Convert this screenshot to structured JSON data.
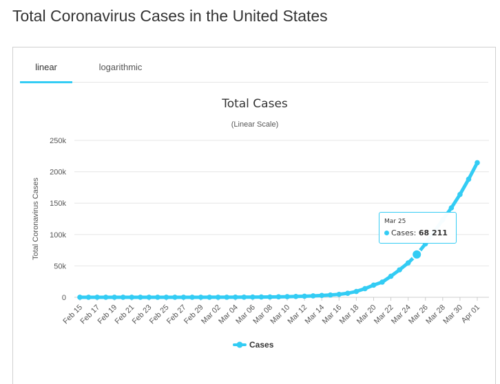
{
  "page": {
    "title": "Total Coronavirus Cases in the United States"
  },
  "tabs": [
    {
      "label": "linear",
      "active": true
    },
    {
      "label": "logarithmic",
      "active": false
    }
  ],
  "tooltip": {
    "date": "Mar 25",
    "series": "Cases",
    "value_text": "68 211"
  },
  "legend": {
    "label": "Cases"
  },
  "colors": {
    "series": "#33ccf4",
    "tab_active": "#33ccf4",
    "grid": "#e6e6e6"
  },
  "chart_data": {
    "type": "line",
    "title": "Total Cases",
    "subtitle": "(Linear Scale)",
    "ylabel": "Total Coronavirus Cases",
    "xlabel": "",
    "ylim": [
      0,
      250000
    ],
    "y_ticks": [
      0,
      50000,
      100000,
      150000,
      200000,
      250000
    ],
    "y_tick_labels": [
      "0",
      "50k",
      "100k",
      "150k",
      "200k",
      "250k"
    ],
    "grid": true,
    "legend_position": "bottom-center",
    "x_tick_labels": [
      "Feb 15",
      "Feb 17",
      "Feb 19",
      "Feb 21",
      "Feb 23",
      "Feb 25",
      "Feb 27",
      "Feb 29",
      "Mar 02",
      "Mar 04",
      "Mar 06",
      "Mar 08",
      "Mar 10",
      "Mar 12",
      "Mar 14",
      "Mar 16",
      "Mar 18",
      "Mar 20",
      "Mar 22",
      "Mar 24",
      "Mar 26",
      "Mar 28",
      "Mar 30",
      "Apr 01"
    ],
    "x": [
      "Feb 15",
      "Feb 16",
      "Feb 17",
      "Feb 18",
      "Feb 19",
      "Feb 20",
      "Feb 21",
      "Feb 22",
      "Feb 23",
      "Feb 24",
      "Feb 25",
      "Feb 26",
      "Feb 27",
      "Feb 28",
      "Feb 29",
      "Mar 01",
      "Mar 02",
      "Mar 03",
      "Mar 04",
      "Mar 05",
      "Mar 06",
      "Mar 07",
      "Mar 08",
      "Mar 09",
      "Mar 10",
      "Mar 11",
      "Mar 12",
      "Mar 13",
      "Mar 14",
      "Mar 15",
      "Mar 16",
      "Mar 17",
      "Mar 18",
      "Mar 19",
      "Mar 20",
      "Mar 21",
      "Mar 22",
      "Mar 23",
      "Mar 24",
      "Mar 25",
      "Mar 26",
      "Mar 27",
      "Mar 28",
      "Mar 29",
      "Mar 30",
      "Mar 31",
      "Apr 01"
    ],
    "series": [
      {
        "name": "Cases",
        "values": [
          15,
          15,
          15,
          15,
          15,
          15,
          15,
          35,
          35,
          53,
          57,
          60,
          60,
          62,
          68,
          75,
          100,
          124,
          158,
          221,
          319,
          435,
          541,
          704,
          994,
          1301,
          1697,
          2247,
          2943,
          3680,
          4663,
          6411,
          9259,
          13789,
          19383,
          24207,
          33566,
          43734,
          54821,
          68211,
          85228,
          104126,
          123578,
          142460,
          163886,
          188172,
          214461
        ]
      }
    ],
    "highlighted_point": {
      "x": "Mar 25",
      "y": 68211
    }
  }
}
